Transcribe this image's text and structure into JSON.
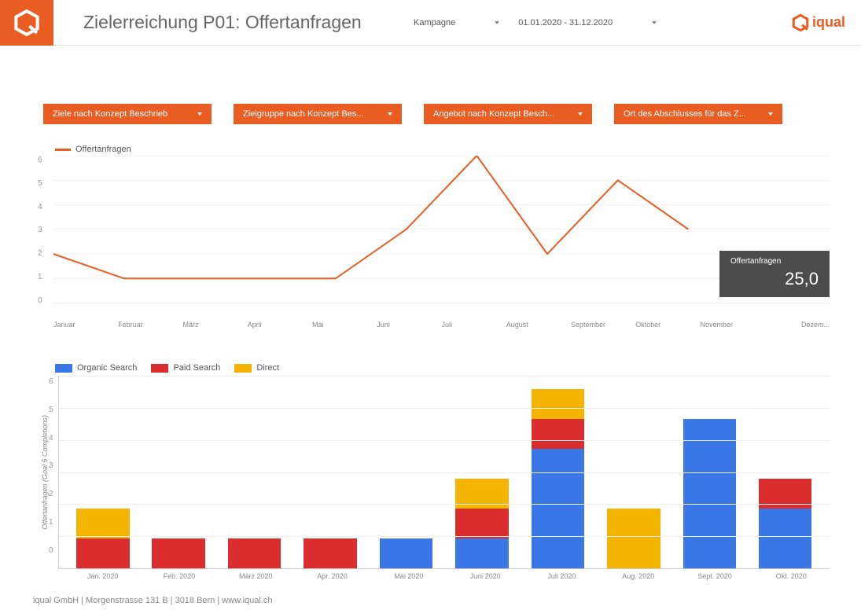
{
  "header": {
    "title": "Zielerreichung P01: Offertanfragen",
    "filter_campaign_label": "Kampagne",
    "date_range": "01.01.2020 - 31.12.2020",
    "brand_text": "iqual",
    "brand_color": "#e95d23"
  },
  "filters": [
    {
      "label": "Ziele nach Konzept Beschrieb"
    },
    {
      "label": "Zielgruppe nach Konzept Bes..."
    },
    {
      "label": "Angebot nach Konzept Besch..."
    },
    {
      "label": "Ort des Abschlusses für das Z..."
    }
  ],
  "line_chart": {
    "type": "line",
    "series_name": "Offertanfragen",
    "series_color": "#e95d23",
    "line_width": 2,
    "ylim": [
      0,
      6
    ],
    "ytick_step": 1,
    "grid_color": "#e0e0e0",
    "background_color": "#ffffff",
    "categories": [
      "Januar",
      "Februar",
      "März",
      "April",
      "Mai",
      "Juni",
      "Juli",
      "August",
      "September",
      "Oktober",
      "November",
      "Dezem..."
    ],
    "values": [
      2,
      1,
      1,
      1,
      1,
      3,
      6,
      2,
      5,
      3
    ],
    "tooltip": {
      "label": "Offertanfragen",
      "value": "25,0",
      "bg": "#4c4c4c"
    }
  },
  "bar_chart": {
    "type": "stacked-bar",
    "y_axis_label": "Offertanfragen (Goal 5 Completions)",
    "ylim": [
      0,
      6
    ],
    "ytick_step": 1,
    "bar_width": 0.7,
    "grid_color": "#eeeeee",
    "series": [
      {
        "name": "Organic Search",
        "color": "#3b78e7"
      },
      {
        "name": "Paid Search",
        "color": "#db2d2d"
      },
      {
        "name": "Direct",
        "color": "#f4b400"
      }
    ],
    "categories": [
      "Jan. 2020",
      "Feb. 2020",
      "März 2020",
      "Apr. 2020",
      "Mai 2020",
      "Juni 2020",
      "Juli 2020",
      "Aug. 2020",
      "Sept. 2020",
      "Okt. 2020"
    ],
    "stacks": [
      {
        "Organic Search": 0,
        "Paid Search": 1,
        "Direct": 1
      },
      {
        "Organic Search": 0,
        "Paid Search": 1,
        "Direct": 0
      },
      {
        "Organic Search": 0,
        "Paid Search": 1,
        "Direct": 0
      },
      {
        "Organic Search": 0,
        "Paid Search": 1,
        "Direct": 0
      },
      {
        "Organic Search": 1,
        "Paid Search": 0,
        "Direct": 0
      },
      {
        "Organic Search": 1,
        "Paid Search": 1,
        "Direct": 1
      },
      {
        "Organic Search": 4,
        "Paid Search": 1,
        "Direct": 1
      },
      {
        "Organic Search": 0,
        "Paid Search": 0,
        "Direct": 2
      },
      {
        "Organic Search": 5,
        "Paid Search": 0,
        "Direct": 0
      },
      {
        "Organic Search": 2,
        "Paid Search": 1,
        "Direct": 0
      }
    ]
  },
  "footer": "iqual GmbH | Morgenstrasse 131 B | 3018 Bern | www.iqual.ch"
}
